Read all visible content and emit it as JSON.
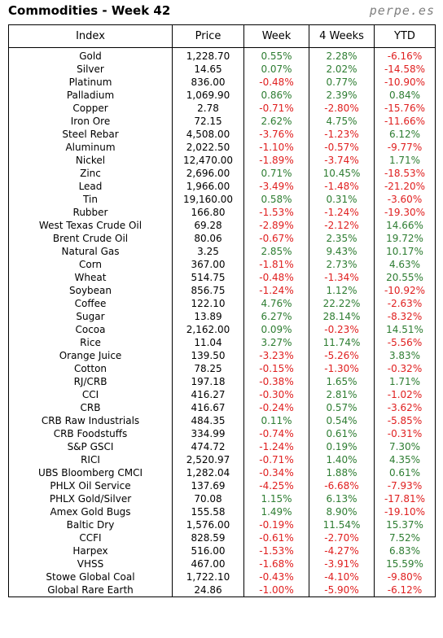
{
  "header": {
    "title": "Commodities - Week 42",
    "brand": "perpe.es"
  },
  "table": {
    "columns": [
      "Index",
      "Price",
      "Week",
      "4 Weeks",
      "YTD"
    ],
    "rows": [
      [
        "Gold",
        "1,228.70",
        "0.55%",
        "2.28%",
        "-6.16%"
      ],
      [
        "Silver",
        "14.65",
        "0.07%",
        "2.02%",
        "-14.58%"
      ],
      [
        "Platinum",
        "836.00",
        "-0.48%",
        "0.77%",
        "-10.90%"
      ],
      [
        "Palladium",
        "1,069.90",
        "0.86%",
        "2.39%",
        "0.84%"
      ],
      [
        "Copper",
        "2.78",
        "-0.71%",
        "-2.80%",
        "-15.76%"
      ],
      [
        "Iron Ore",
        "72.15",
        "2.62%",
        "4.75%",
        "-11.66%"
      ],
      [
        "Steel Rebar",
        "4,508.00",
        "-3.76%",
        "-1.23%",
        "6.12%"
      ],
      [
        "Aluminum",
        "2,022.50",
        "-1.10%",
        "-0.57%",
        "-9.77%"
      ],
      [
        "Nickel",
        "12,470.00",
        "-1.89%",
        "-3.74%",
        "1.71%"
      ],
      [
        "Zinc",
        "2,696.00",
        "0.71%",
        "10.45%",
        "-18.53%"
      ],
      [
        "Lead",
        "1,966.00",
        "-3.49%",
        "-1.48%",
        "-21.20%"
      ],
      [
        "Tin",
        "19,160.00",
        "0.58%",
        "0.31%",
        "-3.60%"
      ],
      [
        "Rubber",
        "166.80",
        "-1.53%",
        "-1.24%",
        "-19.30%"
      ],
      [
        "West Texas Crude Oil",
        "69.28",
        "-2.89%",
        "-2.12%",
        "14.66%"
      ],
      [
        "Brent Crude Oil",
        "80.06",
        "-0.67%",
        "2.35%",
        "19.72%"
      ],
      [
        "Natural Gas",
        "3.25",
        "2.85%",
        "9.43%",
        "10.17%"
      ],
      [
        "Corn",
        "367.00",
        "-1.81%",
        "2.73%",
        "4.63%"
      ],
      [
        "Wheat",
        "514.75",
        "-0.48%",
        "-1.34%",
        "20.55%"
      ],
      [
        "Soybean",
        "856.75",
        "-1.24%",
        "1.12%",
        "-10.92%"
      ],
      [
        "Coffee",
        "122.10",
        "4.76%",
        "22.22%",
        "-2.63%"
      ],
      [
        "Sugar",
        "13.89",
        "6.27%",
        "28.14%",
        "-8.32%"
      ],
      [
        "Cocoa",
        "2,162.00",
        "0.09%",
        "-0.23%",
        "14.51%"
      ],
      [
        "Rice",
        "11.04",
        "3.27%",
        "11.74%",
        "-5.56%"
      ],
      [
        "Orange Juice",
        "139.50",
        "-3.23%",
        "-5.26%",
        "3.83%"
      ],
      [
        "Cotton",
        "78.25",
        "-0.15%",
        "-1.30%",
        "-0.32%"
      ],
      [
        "RJ/CRB",
        "197.18",
        "-0.38%",
        "1.65%",
        "1.71%"
      ],
      [
        "CCI",
        "416.27",
        "-0.30%",
        "2.81%",
        "-1.02%"
      ],
      [
        "CRB",
        "416.67",
        "-0.24%",
        "0.57%",
        "-3.62%"
      ],
      [
        "CRB Raw Industrials",
        "484.35",
        "0.11%",
        "0.54%",
        "-5.85%"
      ],
      [
        "CRB Foodstuffs",
        "334.99",
        "-0.74%",
        "0.61%",
        "-0.31%"
      ],
      [
        "S&P GSCI",
        "474.72",
        "-1.24%",
        "0.19%",
        "7.30%"
      ],
      [
        "RICI",
        "2,520.97",
        "-0.71%",
        "1.40%",
        "4.35%"
      ],
      [
        "UBS Bloomberg CMCI",
        "1,282.04",
        "-0.34%",
        "1.88%",
        "0.61%"
      ],
      [
        "PHLX Oil Service",
        "137.69",
        "-4.25%",
        "-6.68%",
        "-7.93%"
      ],
      [
        "PHLX Gold/Silver",
        "70.08",
        "1.15%",
        "6.13%",
        "-17.81%"
      ],
      [
        "Amex Gold Bugs",
        "155.58",
        "1.49%",
        "8.90%",
        "-19.10%"
      ],
      [
        "Baltic Dry",
        "1,576.00",
        "-0.19%",
        "11.54%",
        "15.37%"
      ],
      [
        "CCFI",
        "828.59",
        "-0.61%",
        "-2.70%",
        "7.52%"
      ],
      [
        "Harpex",
        "516.00",
        "-1.53%",
        "-4.27%",
        "6.83%"
      ],
      [
        "VHSS",
        "467.00",
        "-1.68%",
        "-3.91%",
        "15.59%"
      ],
      [
        "Stowe Global Coal",
        "1,722.10",
        "-0.43%",
        "-4.10%",
        "-9.80%"
      ],
      [
        "Global Rare Earth",
        "24.86",
        "-1.00%",
        "-5.90%",
        "-6.12%"
      ]
    ]
  }
}
